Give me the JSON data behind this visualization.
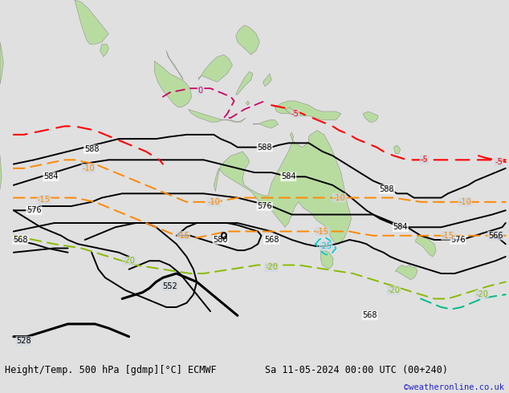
{
  "title_left": "Height/Temp. 500 hPa [gdmp][°C] ECMWF",
  "title_right": "Sa 11-05-2024 00:00 UTC (00+240)",
  "credit": "©weatheronline.co.uk",
  "bg_color": "#d0d8e0",
  "ocean_color": "#d0d8e0",
  "land_color": "#b8dca0",
  "land_edge_color": "#909090",
  "fig_width": 6.34,
  "fig_height": 4.9,
  "dpi": 100,
  "bottom_bar_color": "#e0e0e0",
  "title_fontsize": 8.5,
  "credit_color": "#2222cc",
  "credit_fontsize": 7.5,
  "map_extent": [
    50,
    200,
    -65,
    20
  ],
  "label_fontsize": 7,
  "contour_lw": 1.4,
  "thick_contour_lw": 2.2
}
